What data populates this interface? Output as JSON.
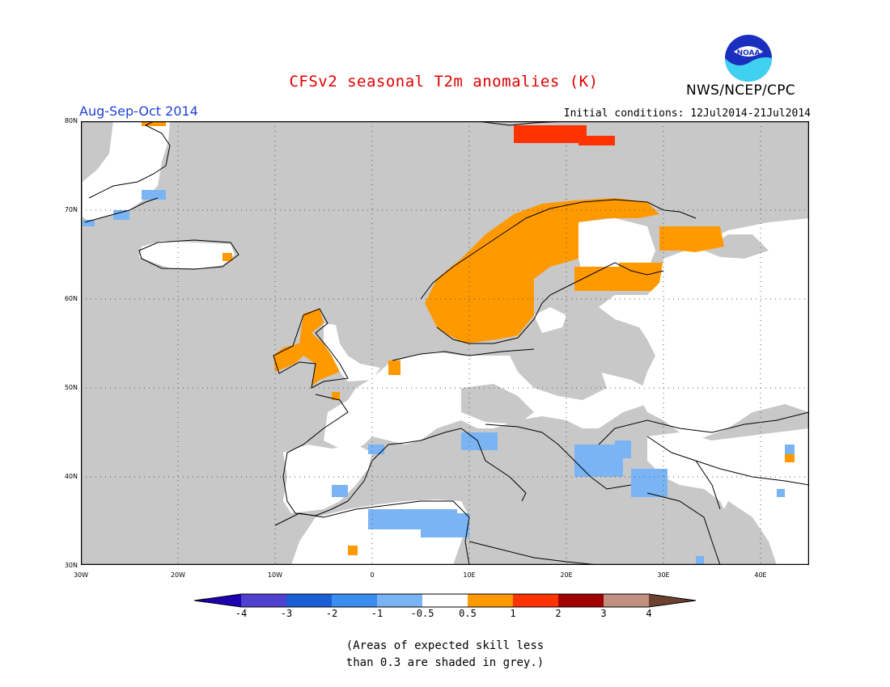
{
  "title": "CFSv2 seasonal T2m anomalies (K)",
  "agency": "NWS/NCEP/CPC",
  "logo_text": "NOAA",
  "season": "Aug-Sep-Oct 2014",
  "initial_conditions": "Initial conditions: 12Jul2014-21Jul2014",
  "lat_labels": [
    "80N",
    "70N",
    "60N",
    "50N",
    "40N",
    "30N"
  ],
  "lon_labels": [
    "30W",
    "20W",
    "10W",
    "0",
    "10E",
    "20E",
    "30E",
    "40E"
  ],
  "colorbar": {
    "labels": [
      "-4",
      "-3",
      "-2",
      "-1",
      "-0.5",
      "0.5",
      "1",
      "2",
      "3",
      "4"
    ],
    "colors": [
      "#1e00b0",
      "#5040d0",
      "#1a5ed6",
      "#3a8cf0",
      "#7ab4f4",
      "#ffffff",
      "#ff9900",
      "#ff3300",
      "#a00000",
      "#c09080",
      "#6e4030"
    ]
  },
  "note_line1": "(Areas of expected skill less",
  "note_line2": "than 0.3 are shaded in grey.)",
  "map_colors": {
    "grey": "#c8c8c8",
    "white": "#ffffff",
    "orange": "#ff9900",
    "red": "#ff3300",
    "blue": "#7ab4f4"
  }
}
